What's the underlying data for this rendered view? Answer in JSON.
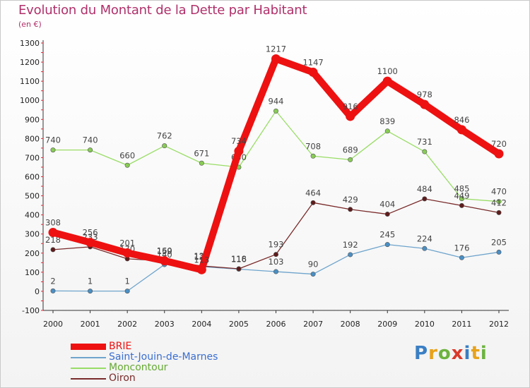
{
  "title": "Evolution du Montant de la Dette par Habitant",
  "unit_label": "(en €)",
  "logo_text": "Proxiti",
  "logo_colors": [
    "#3a7fc4",
    "#e8a21a",
    "#6db33f",
    "#d93a2a"
  ],
  "chart_data": {
    "type": "line",
    "title": "Evolution du Montant de la Dette par Habitant",
    "ylabel": "(en €)",
    "xlabel": "",
    "categories": [
      "2000",
      "2001",
      "2002",
      "2003",
      "2004",
      "2005",
      "2006",
      "2007",
      "2008",
      "2009",
      "2010",
      "2011",
      "2012"
    ],
    "ylim": [
      -100,
      1300
    ],
    "yticks": [
      -100,
      0,
      100,
      200,
      300,
      400,
      500,
      600,
      700,
      800,
      900,
      1000,
      1100,
      1200,
      1300
    ],
    "grid": false,
    "legend_position": "bottom-left",
    "series": [
      {
        "name": "Moncontour",
        "color": "#99dd66",
        "marker": "#88cc55",
        "values": [
          740,
          740,
          660,
          762,
          671,
          650,
          944,
          708,
          689,
          839,
          731,
          485,
          470
        ]
      },
      {
        "name": "Saint-Jouin-de-Marnes",
        "color": "#6ea4cc",
        "marker": "#4a8fc4",
        "values": [
          2,
          1,
          1,
          140,
          129,
          116,
          103,
          90,
          192,
          245,
          224,
          176,
          205
        ]
      },
      {
        "name": "Oiron",
        "color": "#7a2a2a",
        "marker": "#5e1c1c",
        "values": [
          218,
          233,
          170,
          159,
          133,
          118,
          193,
          464,
          429,
          404,
          484,
          449,
          412
        ]
      },
      {
        "name": "BRIE",
        "color": "#ee1111",
        "marker": "#ee1111",
        "values": [
          308,
          256,
          201,
          160,
          113,
          734,
          1217,
          1147,
          916,
          1100,
          978,
          846,
          720
        ]
      }
    ]
  }
}
